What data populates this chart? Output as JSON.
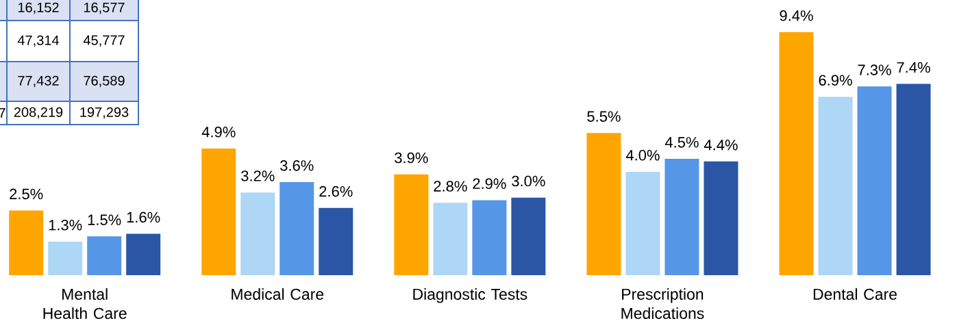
{
  "chart_data": [
    {
      "type": "other",
      "annotations": [
        "16,152",
        "16,577",
        "47,314",
        "45,777",
        "77,432",
        "76,589",
        "208,219",
        "197,293",
        "7"
      ]
    },
    {
      "type": "bar",
      "categories": [
        "Mental Health Care",
        "Medical Care",
        "Diagnostic Tests",
        "Prescription Medications",
        "Dental Care"
      ],
      "data_labels": true,
      "series": [
        {
          "color": "#ffa500",
          "values": [
            2.5,
            4.9,
            3.9,
            5.5,
            9.4
          ],
          "value_labels": [
            "2.5%",
            "4.9%",
            "3.9%",
            "5.5%",
            "9.4%"
          ]
        },
        {
          "color": "#aed6f5",
          "values": [
            1.3,
            3.2,
            2.8,
            4.0,
            6.9
          ],
          "value_labels": [
            "1.3%",
            "3.2%",
            "2.8%",
            "4.0%",
            "6.9%"
          ]
        },
        {
          "color": "#5596e6",
          "values": [
            1.5,
            3.6,
            2.9,
            4.5,
            7.3
          ],
          "value_labels": [
            "1.5%",
            "3.6%",
            "2.9%",
            "4.5%",
            "7.3%"
          ]
        },
        {
          "color": "#2a56a5",
          "values": [
            1.6,
            2.6,
            3.0,
            4.4,
            7.4
          ],
          "value_labels": [
            "1.6%",
            "2.6%",
            "3.0%",
            "4.4%",
            "7.4%"
          ]
        }
      ]
    }
  ]
}
